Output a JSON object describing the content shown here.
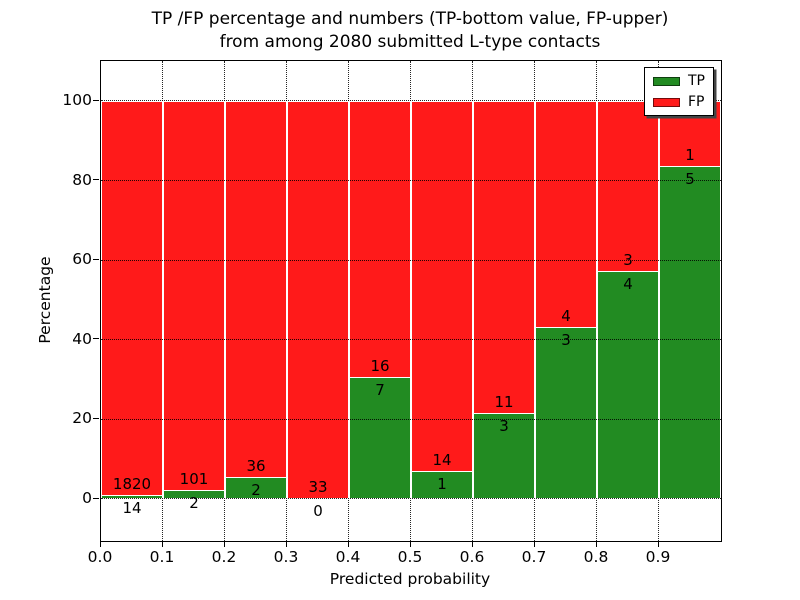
{
  "title": {
    "line1": "TP /FP percentage and numbers (TP-bottom value, FP-upper)",
    "line2": "from among 2080 submitted L-type contacts"
  },
  "axes": {
    "xlabel": "Predicted probability",
    "ylabel": "Percentage",
    "x_tick_labels": [
      "0.0",
      "0.1",
      "0.2",
      "0.3",
      "0.4",
      "0.5",
      "0.6",
      "0.7",
      "0.8",
      "0.9"
    ],
    "y_tick_labels": [
      "0",
      "20",
      "40",
      "60",
      "80",
      "100"
    ],
    "y_tick_values": [
      0,
      20,
      40,
      60,
      80,
      100
    ]
  },
  "legend": {
    "position": "upper right",
    "items": [
      {
        "label": "TP",
        "color": "#228B22"
      },
      {
        "label": "FP",
        "color": "#FF1A1A"
      }
    ]
  },
  "colors": {
    "tp": "#228B22",
    "fp": "#FF1A1A",
    "grid": "#000000",
    "bar_edge": "#ffffff",
    "background": "#ffffff"
  },
  "chart_data": {
    "type": "bar",
    "stacked": true,
    "normalized": "each bin scaled to 100%, labels show raw counts (TP bottom, FP upper)",
    "title": "TP /FP percentage and numbers (TP-bottom value, FP-upper) from among 2080 submitted L-type contacts",
    "xlabel": "Predicted probability",
    "ylabel": "Percentage",
    "total_submitted": 2080,
    "bin_edges": [
      0.0,
      0.1,
      0.2,
      0.3,
      0.4,
      0.5,
      0.6,
      0.7,
      0.8,
      0.9,
      1.0
    ],
    "categories": [
      "0.0-0.1",
      "0.1-0.2",
      "0.2-0.3",
      "0.3-0.4",
      "0.4-0.5",
      "0.5-0.6",
      "0.6-0.7",
      "0.7-0.8",
      "0.8-0.9",
      "0.9-1.0"
    ],
    "series": [
      {
        "name": "TP",
        "color": "#228B22",
        "counts": [
          14,
          2,
          2,
          0,
          7,
          1,
          3,
          3,
          4,
          5
        ]
      },
      {
        "name": "FP",
        "color": "#FF1A1A",
        "counts": [
          1820,
          101,
          36,
          33,
          16,
          14,
          11,
          4,
          3,
          1
        ]
      }
    ],
    "tp_percent": [
      0.76,
      1.94,
      5.26,
      0.0,
      30.43,
      6.67,
      21.43,
      42.86,
      57.14,
      83.33
    ],
    "xlim": [
      0.0,
      1.0
    ],
    "ylim": [
      -10.5,
      110.5
    ],
    "grid": "dotted, both axes",
    "legend_position": "upper right"
  }
}
